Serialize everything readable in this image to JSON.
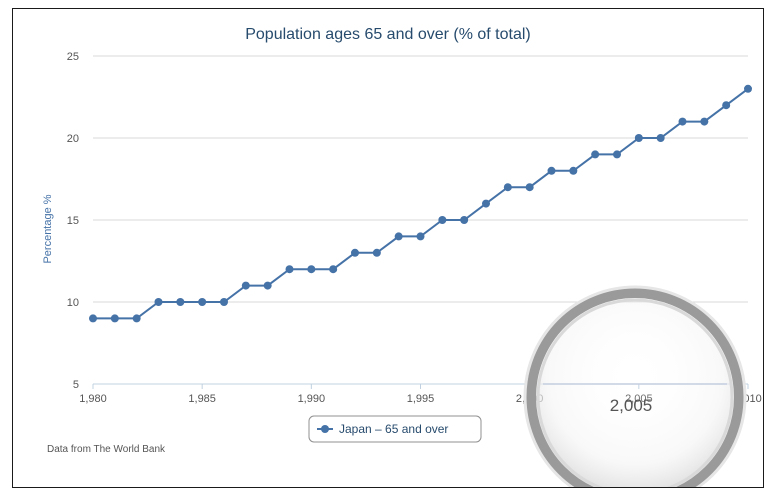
{
  "chart_data": {
    "type": "line",
    "title": "Population ages 65 and over (% of total)",
    "ylabel": "Percentage %",
    "xlabel": "",
    "ylim": [
      5,
      25
    ],
    "xlim": [
      1980,
      2010
    ],
    "yticks": [
      "5",
      "10",
      "15",
      "20",
      "25"
    ],
    "xticks": [
      "1,980",
      "1,985",
      "1,990",
      "1,995",
      "2,000",
      "2,005",
      "2,010"
    ],
    "grid": true,
    "legend_position": "bottom-center",
    "series": [
      {
        "name": "Japan – 65 and over",
        "color": "#4572a7",
        "x": [
          1980,
          1981,
          1982,
          1983,
          1984,
          1985,
          1986,
          1987,
          1988,
          1989,
          1990,
          1991,
          1992,
          1993,
          1994,
          1995,
          1996,
          1997,
          1998,
          1999,
          2000,
          2001,
          2002,
          2003,
          2004,
          2005,
          2006,
          2007,
          2008,
          2009,
          2010
        ],
        "values": [
          9,
          9,
          9,
          10,
          10,
          10,
          10,
          11,
          11,
          12,
          12,
          12,
          13,
          13,
          14,
          14,
          15,
          15,
          16,
          17,
          17,
          18,
          18,
          19,
          19,
          20,
          20,
          21,
          21,
          22,
          23
        ]
      }
    ],
    "credit": "Data from The World Bank",
    "magnifier_label": "2,005"
  }
}
